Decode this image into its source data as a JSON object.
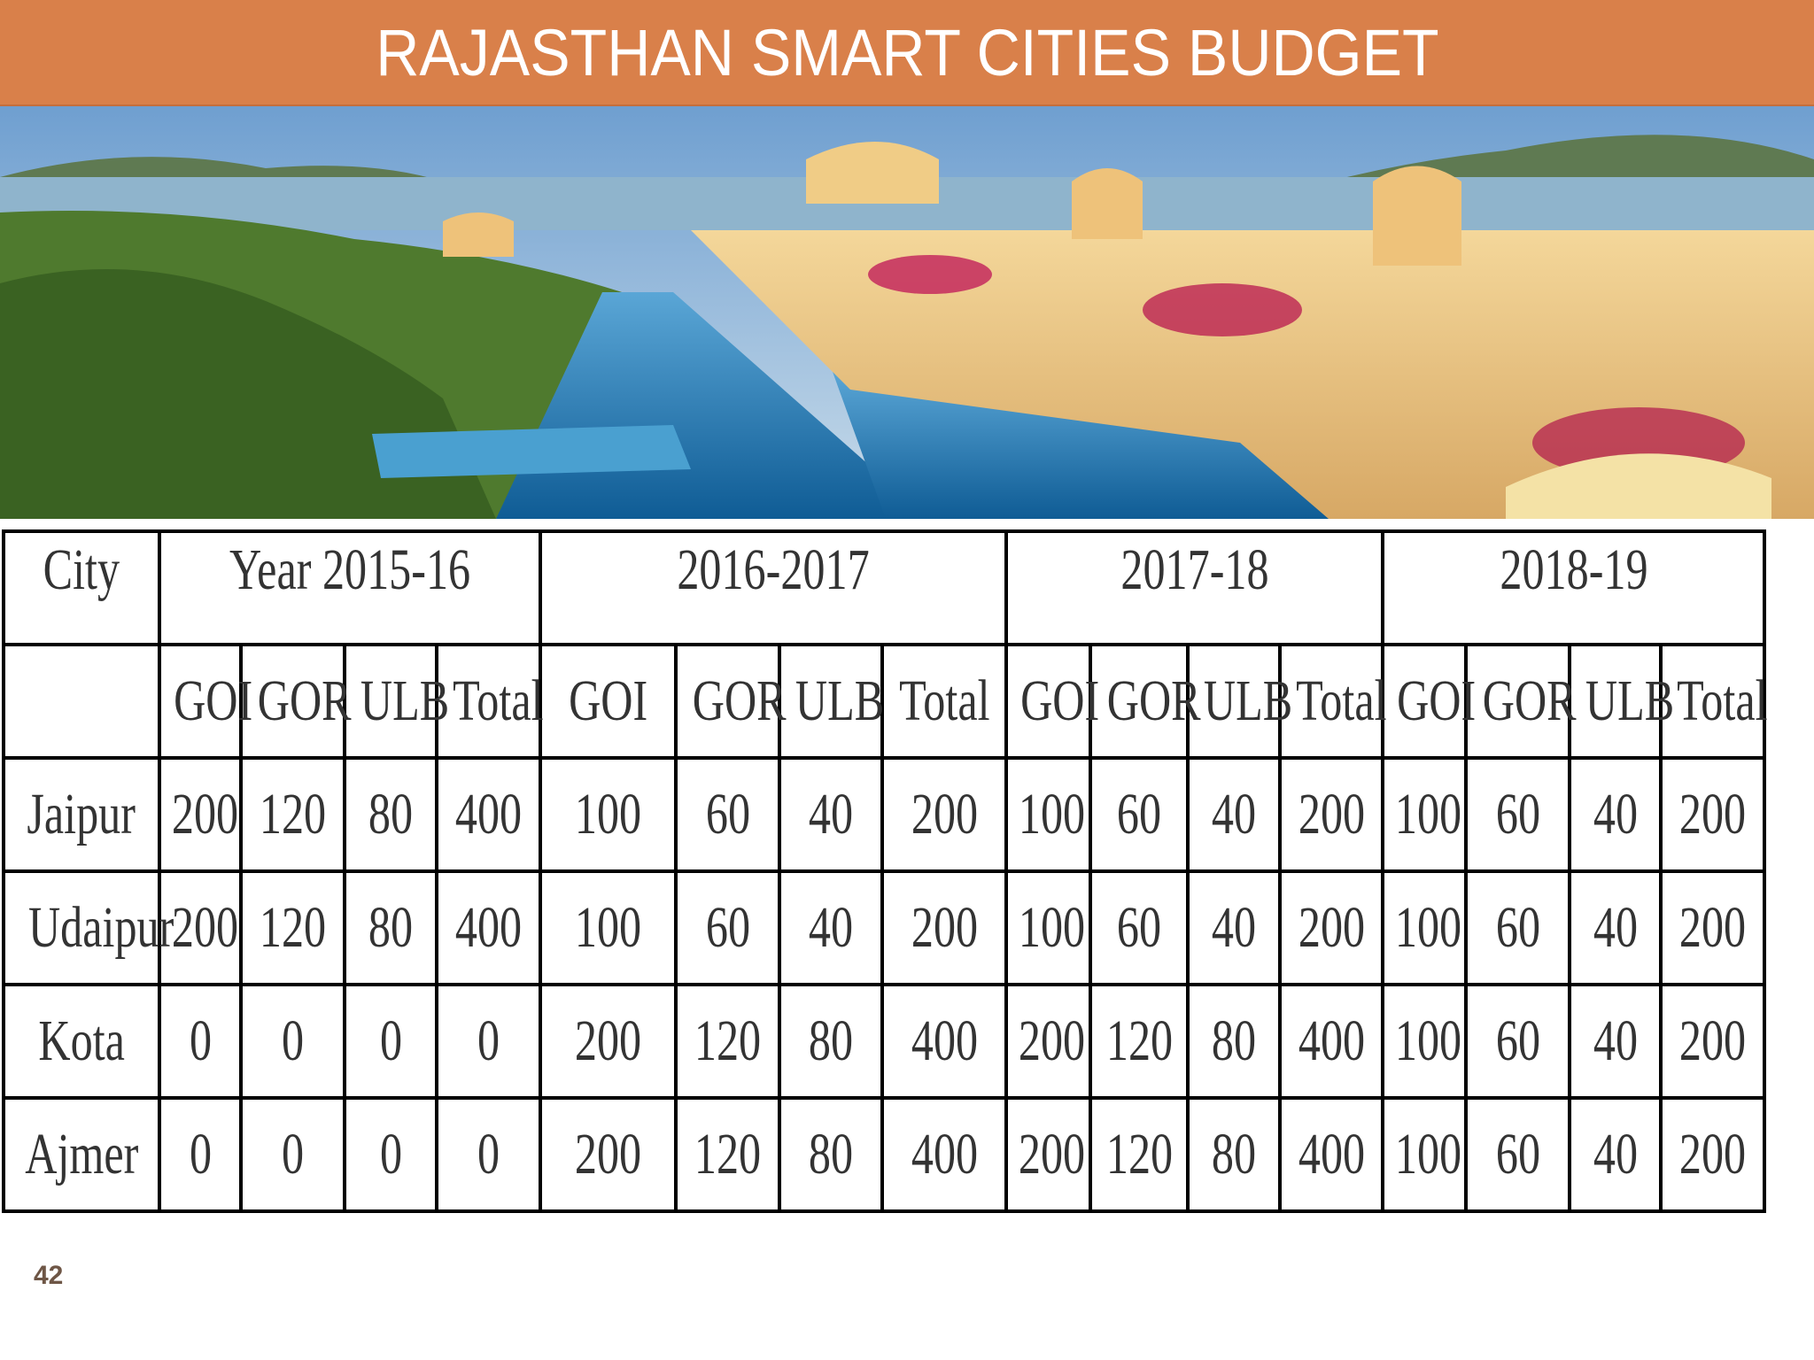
{
  "title": "RAJASTHAN SMART CITIES BUDGET",
  "colors": {
    "title_bar": "#d9804a",
    "title_text": "#ffffff",
    "table_border": "#000000",
    "page_number": "#6e5646"
  },
  "photo": {
    "description_icon": "palace-lake-photo"
  },
  "table": {
    "city_header": "City",
    "years": [
      "Year 2015-16",
      "2016-2017",
      "2017-18",
      "2018-19"
    ],
    "subheaders": [
      "GOI",
      "GOR",
      "ULB",
      "Total"
    ],
    "rows": [
      {
        "city": "Jaipur",
        "values": [
          "200",
          "120",
          "80",
          "400",
          "100",
          "60",
          "40",
          "200",
          "100",
          "60",
          "40",
          "200",
          "100",
          "60",
          "40",
          "200"
        ]
      },
      {
        "city": "Udaipur",
        "values": [
          "200",
          "120",
          "80",
          "400",
          "100",
          "60",
          "40",
          "200",
          "100",
          "60",
          "40",
          "200",
          "100",
          "60",
          "40",
          "200"
        ]
      },
      {
        "city": "Kota",
        "values": [
          "0",
          "0",
          "0",
          "0",
          "200",
          "120",
          "80",
          "400",
          "200",
          "120",
          "80",
          "400",
          "100",
          "60",
          "40",
          "200"
        ]
      },
      {
        "city": "Ajmer",
        "values": [
          "0",
          "0",
          "0",
          "0",
          "200",
          "120",
          "80",
          "400",
          "200",
          "120",
          "80",
          "400",
          "100",
          "60",
          "40",
          "200"
        ]
      }
    ]
  },
  "page_number": "42"
}
